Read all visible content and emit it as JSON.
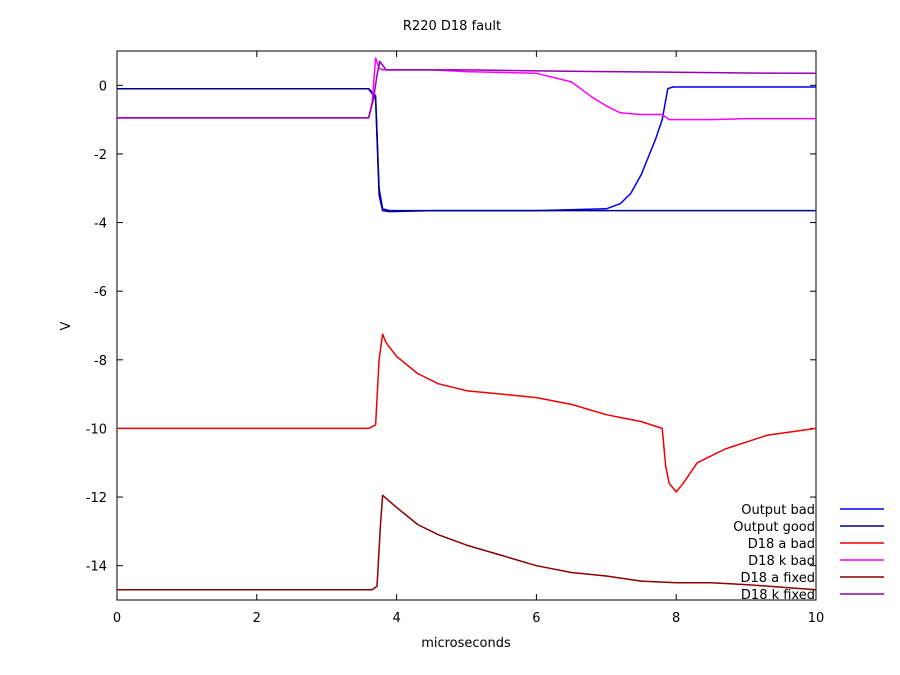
{
  "chart_data": {
    "type": "line",
    "title": "R220 D18 fault",
    "xlabel": "microseconds",
    "ylabel": "V",
    "xlim": [
      0,
      10
    ],
    "ylim": [
      -15,
      1
    ],
    "xticks": [
      0,
      2,
      4,
      6,
      8,
      10
    ],
    "yticks": [
      -14,
      -12,
      -10,
      -8,
      -6,
      -4,
      -2,
      0
    ],
    "grid": false,
    "legend_position": "bottom-right",
    "series": [
      {
        "name": "Output bad",
        "color": "#0000ee",
        "x": [
          0,
          1,
          2,
          3,
          3.6,
          3.7,
          3.75,
          3.8,
          3.9,
          4.5,
          5,
          6,
          7,
          7.2,
          7.35,
          7.5,
          7.6,
          7.7,
          7.8,
          7.88,
          7.95,
          8.5,
          9,
          10
        ],
        "y": [
          -0.1,
          -0.1,
          -0.1,
          -0.1,
          -0.1,
          -0.3,
          -3.0,
          -3.6,
          -3.65,
          -3.65,
          -3.65,
          -3.65,
          -3.6,
          -3.45,
          -3.15,
          -2.6,
          -2.1,
          -1.6,
          -1.0,
          -0.1,
          -0.05,
          -0.05,
          -0.05,
          -0.05
        ]
      },
      {
        "name": "Output good",
        "color": "#00008b",
        "x": [
          0,
          1,
          2,
          3,
          3.6,
          3.7,
          3.75,
          3.8,
          3.9,
          4.5,
          5,
          6,
          7,
          8,
          9,
          10
        ],
        "y": [
          -0.1,
          -0.1,
          -0.1,
          -0.1,
          -0.1,
          -0.4,
          -3.2,
          -3.65,
          -3.68,
          -3.65,
          -3.65,
          -3.65,
          -3.65,
          -3.65,
          -3.65,
          -3.65
        ]
      },
      {
        "name": "D18 a bad",
        "color": "#ee0000",
        "x": [
          0,
          1,
          2,
          3,
          3.6,
          3.7,
          3.75,
          3.8,
          3.85,
          4.0,
          4.3,
          4.6,
          5,
          5.5,
          6,
          6.5,
          7,
          7.5,
          7.8,
          7.85,
          7.9,
          8.0,
          8.1,
          8.3,
          8.7,
          9.3,
          10
        ],
        "y": [
          -10.0,
          -10.0,
          -10.0,
          -10.0,
          -10.0,
          -9.9,
          -8.0,
          -7.25,
          -7.5,
          -7.9,
          -8.4,
          -8.7,
          -8.9,
          -9.0,
          -9.1,
          -9.3,
          -9.6,
          -9.8,
          -10.0,
          -11.1,
          -11.6,
          -11.85,
          -11.6,
          -11.0,
          -10.6,
          -10.2,
          -10.0
        ]
      },
      {
        "name": "D18 k bad",
        "color": "#ff00ff",
        "x": [
          0,
          1,
          2,
          3,
          3.6,
          3.65,
          3.7,
          3.75,
          3.8,
          3.9,
          4.5,
          5,
          6,
          6.5,
          6.8,
          7,
          7.2,
          7.5,
          7.8,
          7.9,
          8.5,
          9,
          10
        ],
        "y": [
          -0.95,
          -0.95,
          -0.95,
          -0.95,
          -0.95,
          -0.5,
          0.8,
          0.5,
          0.45,
          0.45,
          0.45,
          0.4,
          0.35,
          0.1,
          -0.35,
          -0.6,
          -0.8,
          -0.85,
          -0.85,
          -1.0,
          -1.0,
          -0.97,
          -0.97
        ]
      },
      {
        "name": "D18 a fixed",
        "color": "#8b0000",
        "x": [
          0,
          1,
          2,
          3,
          3.65,
          3.72,
          3.77,
          3.8,
          4.0,
          4.3,
          4.6,
          5,
          5.5,
          6,
          6.5,
          7,
          7.5,
          8,
          8.5,
          9,
          10
        ],
        "y": [
          -14.7,
          -14.7,
          -14.7,
          -14.7,
          -14.7,
          -14.6,
          -12.8,
          -11.95,
          -12.3,
          -12.8,
          -13.1,
          -13.4,
          -13.7,
          -14.0,
          -14.2,
          -14.3,
          -14.45,
          -14.5,
          -14.5,
          -14.55,
          -14.7
        ]
      },
      {
        "name": "D18 k fixed",
        "color": "#9400b0",
        "x": [
          0,
          1,
          2,
          3,
          3.6,
          3.67,
          3.72,
          3.76,
          3.85,
          4.5,
          5,
          6,
          7,
          8,
          9,
          10
        ],
        "y": [
          -0.95,
          -0.95,
          -0.95,
          -0.95,
          -0.95,
          -0.4,
          0.3,
          0.7,
          0.45,
          0.45,
          0.45,
          0.42,
          0.4,
          0.38,
          0.36,
          0.35
        ]
      }
    ]
  }
}
